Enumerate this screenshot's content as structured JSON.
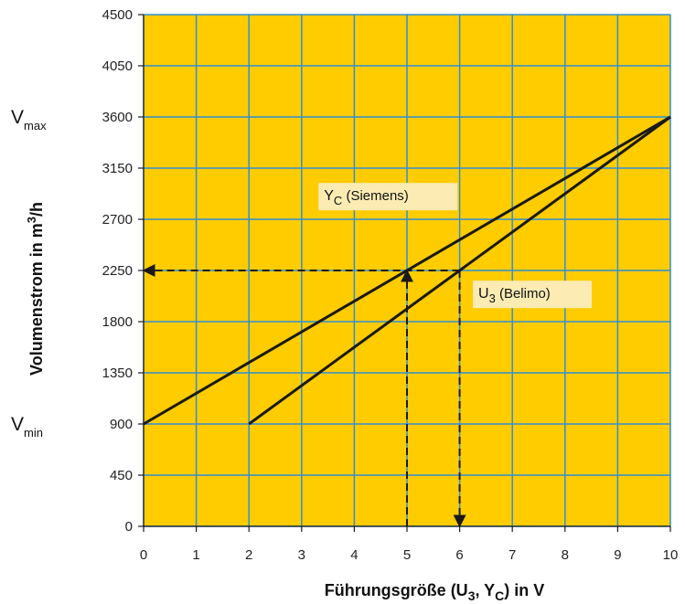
{
  "chart_data": {
    "type": "line",
    "x": [
      0,
      10
    ],
    "xlim": [
      0,
      10
    ],
    "ylim": [
      0,
      4500
    ],
    "x_ticks": [
      "0",
      "1",
      "2",
      "3",
      "4",
      "5",
      "6",
      "7",
      "8",
      "9",
      "10"
    ],
    "y_ticks": [
      "0",
      "450",
      "900",
      "1350",
      "1800",
      "2250",
      "2700",
      "3150",
      "3600",
      "4050",
      "4500"
    ],
    "xlabel": {
      "main": "Führungsgröße (U",
      "sub1": "3",
      "mid": ", Y",
      "sub2": "C",
      "end": ") in V"
    },
    "ylabel": {
      "main": "Volumenstrom in m",
      "sup": "3",
      "end": "/h"
    },
    "grid": true,
    "series": [
      {
        "name": "Y_C (Siemens)",
        "label_main": "Y",
        "label_sub": "C",
        "label_rest": " (Siemens)",
        "points": [
          [
            0,
            900
          ],
          [
            10,
            3600
          ]
        ]
      },
      {
        "name": "U_3 (Belimo)",
        "label_main": "U",
        "label_sub": "3",
        "label_rest": " (Belimo)",
        "points": [
          [
            2,
            900
          ],
          [
            10,
            3600
          ]
        ]
      }
    ],
    "annotations": {
      "vmax": {
        "main": "V",
        "sub": "max",
        "value": 3600
      },
      "vmin": {
        "main": "V",
        "sub": "min",
        "value": 900
      },
      "reference_arrows": [
        {
          "from": [
            5,
            0
          ],
          "to": [
            5,
            2250
          ]
        },
        {
          "from": [
            6,
            2250
          ],
          "to": [
            6,
            0
          ]
        },
        {
          "from": [
            6,
            2250
          ],
          "to": [
            0,
            2250
          ]
        }
      ]
    },
    "colors": {
      "plot_background": "#FFCC00",
      "grid": "#2F8FD6",
      "line": "#1A1A1A",
      "label_box": "#FCEBB3"
    }
  }
}
